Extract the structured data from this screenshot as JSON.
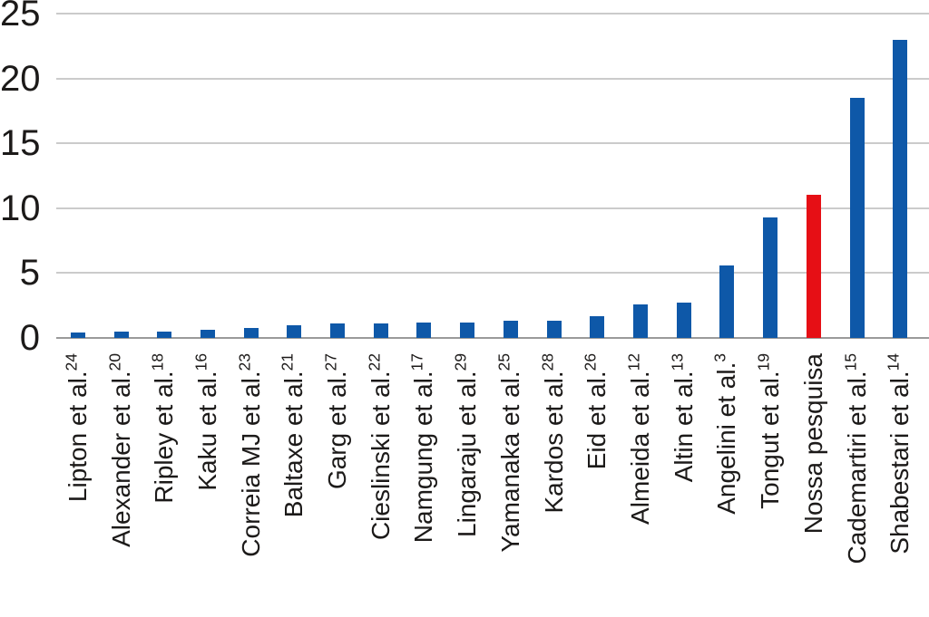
{
  "chart_data": {
    "type": "bar",
    "title": "",
    "xlabel": "",
    "ylabel": "",
    "ylim": [
      0,
      25
    ],
    "yticks": [
      0,
      5,
      10,
      15,
      20,
      25
    ],
    "grid": "horizontal",
    "legend": "none",
    "categories": [
      "Lipton et al.",
      "Alexander et al.",
      "Ripley et al.",
      "Kaku et al.",
      "Correia MJ et al.",
      "Baltaxe et al.",
      "Garg et al.",
      "Cieslinski et al.",
      "Namgung et al.",
      "Lingaraju et al.",
      "Yamanaka et al.",
      "Kardos et al.",
      "Eid et al.",
      "Almeida et al.",
      "Altin et al.",
      "Angelini et al.",
      "Tongut et al.",
      "Nossa pesquisa",
      "Cademartiri et al.",
      "Shabestari et al."
    ],
    "reference_superscripts": [
      "24",
      "20",
      "18",
      "16",
      "23",
      "21",
      "27",
      "22",
      "17",
      "29",
      "25",
      "28",
      "26",
      "12",
      "13",
      "3",
      "19",
      null,
      "15",
      "14"
    ],
    "values": [
      0.4,
      0.5,
      0.5,
      0.6,
      0.8,
      1.0,
      1.1,
      1.1,
      1.2,
      1.2,
      1.3,
      1.3,
      1.7,
      2.6,
      2.7,
      5.6,
      9.3,
      11.0,
      18.5,
      23.0
    ],
    "highlight_index": 17,
    "highlight_category": "Nossa pesquisa",
    "colors": {
      "bar": "#0e58a8",
      "highlight_bar": "#e60f15",
      "gridline": "#cbcbcb",
      "axis_line": "#9a9a9a",
      "text": "#1c1a19",
      "background": "#ffffff"
    }
  }
}
